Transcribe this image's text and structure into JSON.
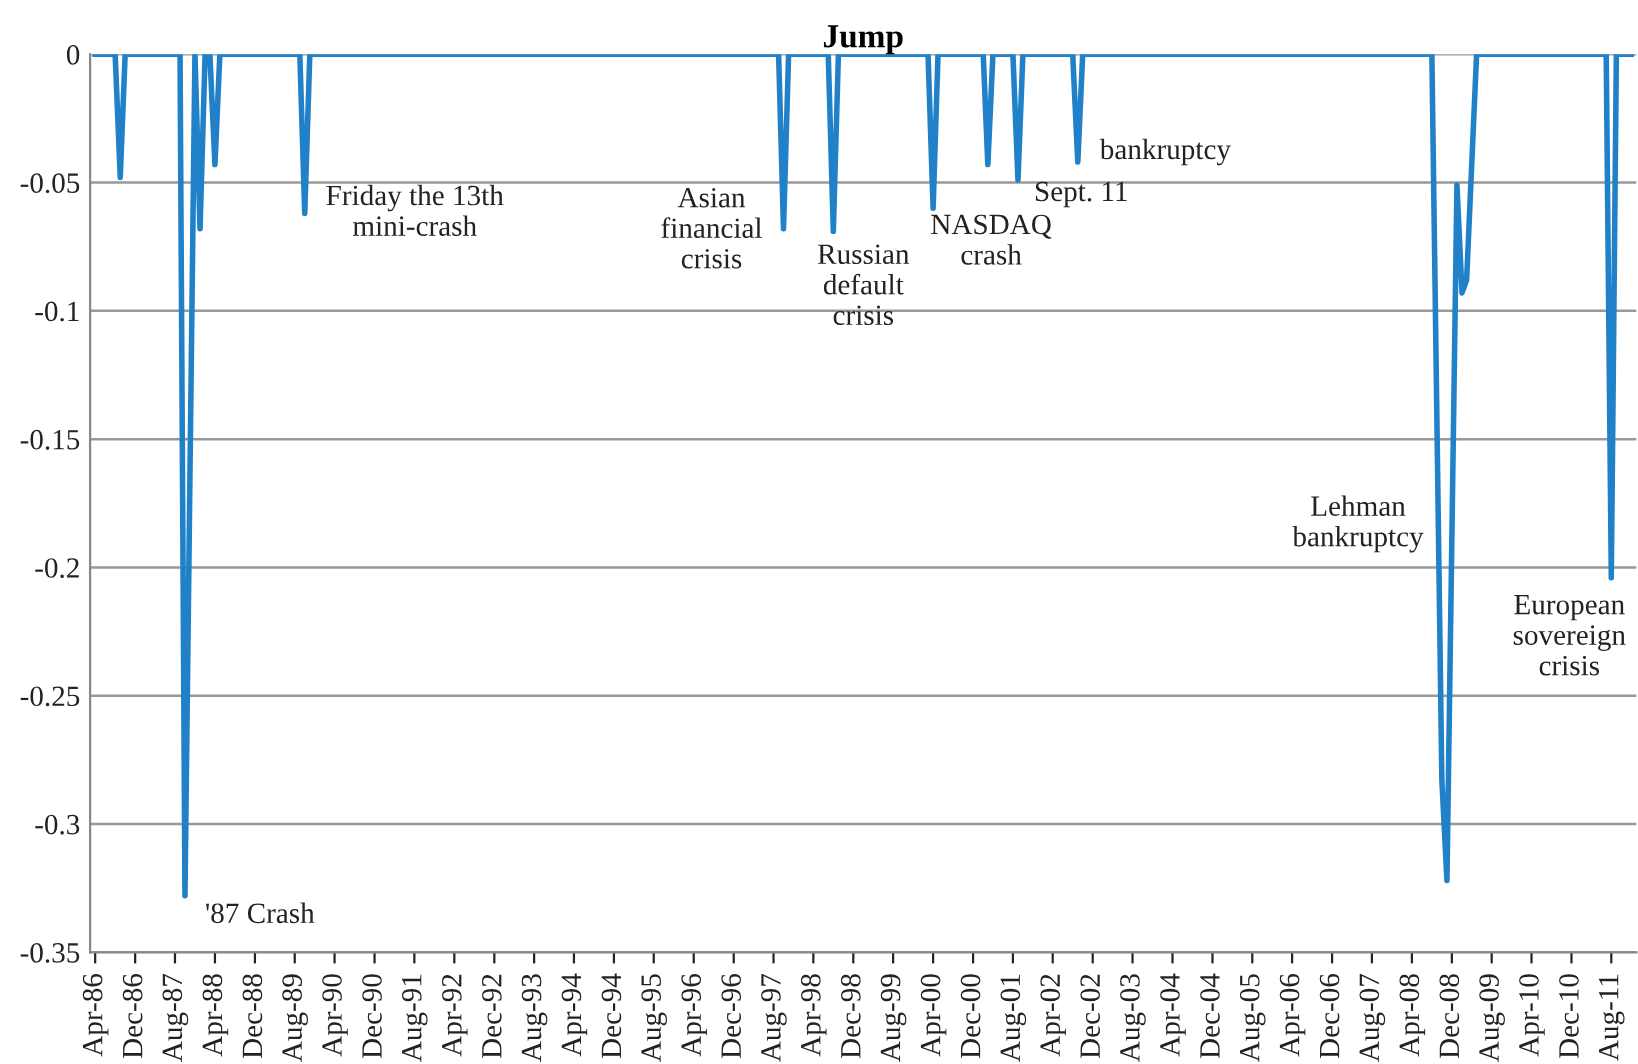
{
  "chart_data": {
    "type": "line",
    "title": "Jump",
    "color": "#2080c8",
    "grid": "y",
    "legend": false,
    "marker": "none",
    "line_style": "solid",
    "x": [
      "1986-04",
      "1986-08",
      "1986-09",
      "1986-10",
      "1987-09",
      "1987-10",
      "1987-12",
      "1988-01",
      "1988-02",
      "1988-03",
      "1988-04",
      "1988-05",
      "1989-09",
      "1989-10",
      "1989-11",
      "1997-09",
      "1997-10",
      "1997-11",
      "1998-07",
      "1998-08",
      "1998-09",
      "2000-03",
      "2000-04",
      "2000-05",
      "2001-02",
      "2001-03",
      "2001-04",
      "2001-08",
      "2001-09",
      "2001-10",
      "2002-08",
      "2002-09",
      "2002-10",
      "2008-08",
      "2008-10",
      "2008-11",
      "2009-01",
      "2009-02",
      "2009-03",
      "2009-05",
      "2011-07",
      "2011-08",
      "2011-09",
      "2011-12"
    ],
    "values": [
      0,
      0,
      -0.048,
      0,
      0,
      -0.328,
      0,
      -0.068,
      0,
      0,
      -0.043,
      0,
      0,
      -0.062,
      0,
      0,
      -0.068,
      0,
      0,
      -0.069,
      0,
      0,
      -0.06,
      0,
      0,
      -0.043,
      0,
      0,
      -0.049,
      0,
      0,
      -0.042,
      0,
      0,
      -0.283,
      -0.322,
      -0.051,
      -0.093,
      -0.088,
      0,
      0,
      -0.204,
      0,
      0
    ],
    "xlim": [
      "1986-03",
      "2012-01"
    ],
    "ylim": [
      -0.35,
      0
    ],
    "yticks": [
      -0.35,
      -0.3,
      -0.25,
      -0.2,
      -0.15,
      -0.1,
      -0.05,
      0
    ],
    "xticks": [
      {
        "value": "1986-04",
        "label": "Apr-86"
      },
      {
        "value": "1986-12",
        "label": "Dec-86"
      },
      {
        "value": "1987-08",
        "label": "Aug-87"
      },
      {
        "value": "1988-04",
        "label": "Apr-88"
      },
      {
        "value": "1988-12",
        "label": "Dec-88"
      },
      {
        "value": "1989-08",
        "label": "Aug-89"
      },
      {
        "value": "1990-04",
        "label": "Apr-90"
      },
      {
        "value": "1990-12",
        "label": "Dec-90"
      },
      {
        "value": "1991-08",
        "label": "Aug-91"
      },
      {
        "value": "1992-04",
        "label": "Apr-92"
      },
      {
        "value": "1992-12",
        "label": "Dec-92"
      },
      {
        "value": "1993-08",
        "label": "Aug-93"
      },
      {
        "value": "1994-04",
        "label": "Apr-94"
      },
      {
        "value": "1994-12",
        "label": "Dec-94"
      },
      {
        "value": "1995-08",
        "label": "Aug-95"
      },
      {
        "value": "1996-04",
        "label": "Apr-96"
      },
      {
        "value": "1996-12",
        "label": "Dec-96"
      },
      {
        "value": "1997-08",
        "label": "Aug-97"
      },
      {
        "value": "1998-04",
        "label": "Apr-98"
      },
      {
        "value": "1998-12",
        "label": "Dec-98"
      },
      {
        "value": "1999-08",
        "label": "Aug-99"
      },
      {
        "value": "2000-04",
        "label": "Apr-00"
      },
      {
        "value": "2000-12",
        "label": "Dec-00"
      },
      {
        "value": "2001-08",
        "label": "Aug-01"
      },
      {
        "value": "2002-04",
        "label": "Apr-02"
      },
      {
        "value": "2002-12",
        "label": "Dec-02"
      },
      {
        "value": "2003-08",
        "label": "Aug-03"
      },
      {
        "value": "2004-04",
        "label": "Apr-04"
      },
      {
        "value": "2004-12",
        "label": "Dec-04"
      },
      {
        "value": "2005-08",
        "label": "Aug-05"
      },
      {
        "value": "2006-04",
        "label": "Apr-06"
      },
      {
        "value": "2006-12",
        "label": "Dec-06"
      },
      {
        "value": "2007-08",
        "label": "Aug-07"
      },
      {
        "value": "2008-04",
        "label": "Apr-08"
      },
      {
        "value": "2008-12",
        "label": "Dec-08"
      },
      {
        "value": "2009-08",
        "label": "Aug-09"
      },
      {
        "value": "2010-04",
        "label": "Apr-10"
      },
      {
        "value": "2010-12",
        "label": "Dec-10"
      },
      {
        "value": "2011-08",
        "label": "Aug-11"
      }
    ],
    "annotations": [
      {
        "text": "'87 Crash",
        "x": "1987-10",
        "y": -0.328
      },
      {
        "text": "Friday the 13th\nmini-crash",
        "x": "1989-10",
        "y": -0.062
      },
      {
        "text": "Asian\nfinancial\ncrisis",
        "x": "1997-10",
        "y": -0.068
      },
      {
        "text": "Russian\ndefault\ncrisis",
        "x": "1998-08",
        "y": -0.069
      },
      {
        "text": "NASDAQ\ncrash",
        "x": "2000-04",
        "y": -0.06
      },
      {
        "text": "Sept. 11",
        "x": "2001-09",
        "y": -0.049
      },
      {
        "text": "bankruptcy",
        "x": "2002-09",
        "y": -0.042
      },
      "Lehman\nbankruptcy",
      {
        "text": "European\nsovereign\ncrisis",
        "x": "2011-08",
        "y": -0.204
      }
    ]
  }
}
